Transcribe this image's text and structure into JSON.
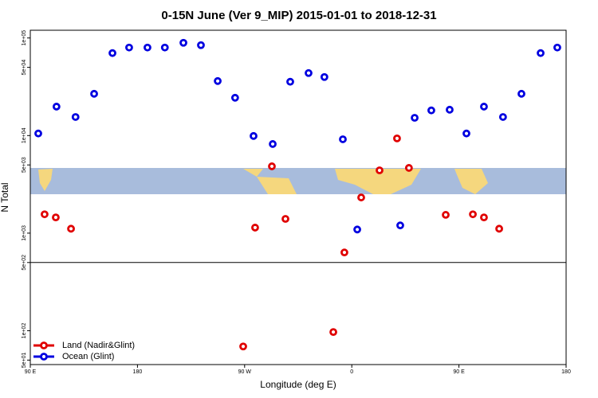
{
  "chart_data": {
    "type": "scatter",
    "title": "0-15N June (Ver 9_MIP)   2015-01-01 to 2018-12-31",
    "x_label": "Longitude (deg E)",
    "y_label": "N Total",
    "xlim": [
      90,
      540
    ],
    "xticks": [
      {
        "value": 90,
        "label": "90 E"
      },
      {
        "value": 180,
        "label": "180"
      },
      {
        "value": 270,
        "label": "90 W"
      },
      {
        "value": 360,
        "label": "0"
      },
      {
        "value": 450,
        "label": "90 E"
      },
      {
        "value": 540,
        "label": "180"
      }
    ],
    "ylim": [
      45,
      120000
    ],
    "log_y": true,
    "yticks": [
      {
        "value": 100000,
        "label": "1e+05"
      },
      {
        "value": 50000,
        "label": "5e+04"
      },
      {
        "value": 10000,
        "label": "1e+04"
      },
      {
        "value": 5000,
        "label": "5e+03"
      },
      {
        "value": 1000,
        "label": "1e+03"
      },
      {
        "value": 500,
        "label": "5e+02"
      },
      {
        "value": 100,
        "label": "1e+02"
      },
      {
        "value": 50,
        "label": "5e+01"
      }
    ],
    "hline": 500,
    "legend": "bottomleft",
    "series": [
      {
        "name": "Land (Nadir&Glint)",
        "color": "#e00000",
        "x": [
          102,
          111.4,
          124.2,
          268.8,
          278.8,
          292.9,
          304.3,
          344.5,
          353.8,
          367.9,
          383.3,
          398,
          408,
          438.9,
          461.7,
          471,
          483.8
        ],
        "values": [
          1560,
          1450,
          1110,
          69,
          1140,
          4840,
          1400,
          97,
          634,
          2320,
          4400,
          9350,
          4660,
          1540,
          1560,
          1450,
          1110
        ]
      },
      {
        "name": "Ocean (Glint)",
        "color": "#0000e0",
        "x": [
          96.7,
          112,
          128,
          143.6,
          159,
          173,
          188.4,
          203,
          218.6,
          233.3,
          247.4,
          262,
          277.5,
          293.6,
          308.3,
          323.7,
          337,
          352.5,
          364.6,
          400.7,
          412.8,
          426.8,
          442.2,
          456.3,
          471,
          487,
          502.5,
          518.6,
          532.6
        ],
        "values": [
          10500,
          19800,
          15500,
          26800,
          70000,
          79800,
          79800,
          79800,
          89300,
          84400,
          36200,
          24400,
          9900,
          8190,
          35600,
          43700,
          39800,
          9160,
          1090,
          1200,
          15200,
          18100,
          18400,
          10500,
          19800,
          15500,
          26800,
          70000,
          79800
        ]
      }
    ]
  }
}
